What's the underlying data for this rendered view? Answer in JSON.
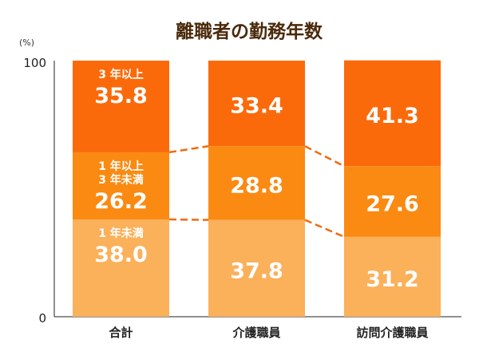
{
  "chart_data": {
    "type": "bar",
    "stacked": true,
    "title": "離職者の勤務年数",
    "unit_label": "(%)",
    "ylim": [
      0,
      100
    ],
    "yticks": [
      "0",
      "100"
    ],
    "categories": [
      "合計",
      "介護職員",
      "訪問介護職員"
    ],
    "series": [
      {
        "name": "1 年未満",
        "values": [
          38.0,
          37.8,
          31.2
        ],
        "color": "#fbb05a"
      },
      {
        "name": "1 年以上\n3 年未満",
        "values": [
          26.2,
          28.8,
          27.6
        ],
        "color": "#fb8a12"
      },
      {
        "name": "3 年以上",
        "values": [
          35.8,
          33.4,
          41.3
        ],
        "color": "#fb6a0a"
      }
    ],
    "value_labels": [
      [
        "38.0",
        "37.8",
        "31.2"
      ],
      [
        "26.2",
        "28.8",
        "27.6"
      ],
      [
        "35.8",
        "33.4",
        "41.3"
      ]
    ],
    "connector_color": "#f26a0c",
    "grid": false,
    "legend": "inside first bar"
  }
}
